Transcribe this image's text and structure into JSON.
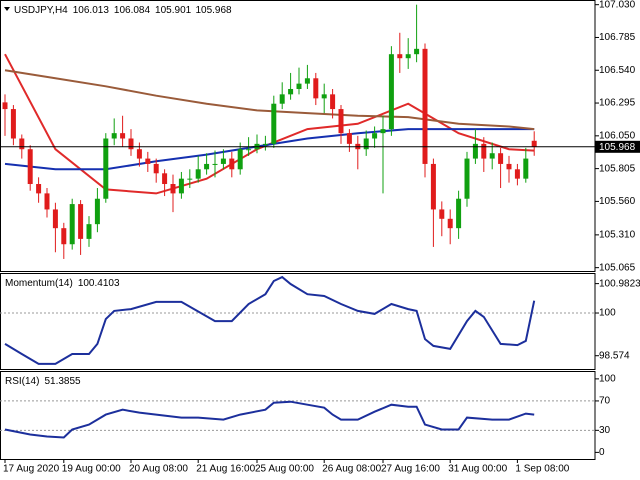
{
  "chart_data": [
    {
      "type": "candlestick",
      "title": "USDJPY,H4",
      "categories": [
        "17 Aug 2020",
        null,
        null,
        null,
        null,
        null,
        null,
        "19 Aug 00:00",
        null,
        null,
        null,
        null,
        null,
        null,
        null,
        "20 Aug 08:00",
        null,
        null,
        null,
        null,
        null,
        null,
        null,
        "21 Aug 16:00",
        null,
        null,
        null,
        null,
        null,
        null,
        "25 Aug 00:00",
        null,
        null,
        null,
        null,
        null,
        null,
        null,
        "26 Aug 08:00",
        null,
        null,
        null,
        null,
        null,
        null,
        "27 Aug 16:00",
        null,
        null,
        null,
        null,
        null,
        null,
        null,
        "31 Aug 00:00",
        null,
        null,
        null,
        null,
        null,
        null,
        null,
        "1 Sep 08:00",
        null,
        null
      ],
      "series": [
        {
          "open": [
            106.3,
            106.25,
            106.03,
            105.95,
            105.69,
            105.62,
            105.5,
            105.36,
            105.24,
            105.54,
            105.28,
            105.39,
            105.58,
            106.03,
            106.07,
            106.03,
            105.95,
            105.88,
            105.84,
            105.77,
            105.69,
            105.62,
            105.73,
            105.73,
            105.8,
            105.84,
            105.84,
            105.88,
            105.8,
            105.95,
            105.95,
            105.99,
            105.99,
            106.29,
            106.36,
            106.4,
            106.44,
            106.48,
            106.33,
            106.36,
            106.25,
            106.07,
            105.99,
            105.95,
            106.03,
            106.07,
            106.1,
            106.66,
            106.63,
            106.66,
            106.7,
            105.84,
            105.5,
            105.43,
            105.36,
            105.58,
            105.88,
            105.99,
            105.88,
            105.92,
            105.84,
            105.8,
            105.73,
            106.013
          ],
          "high": [
            106.36,
            106.28,
            106.06,
            105.98,
            105.74,
            105.66,
            105.55,
            105.4,
            105.58,
            105.57,
            105.45,
            105.66,
            106.07,
            106.18,
            106.2,
            106.1,
            106.0,
            105.93,
            105.88,
            105.8,
            105.76,
            105.78,
            105.8,
            105.9,
            105.92,
            105.94,
            105.95,
            105.93,
            106.0,
            106.04,
            106.06,
            106.05,
            106.35,
            106.45,
            106.52,
            106.56,
            106.58,
            106.52,
            106.44,
            106.4,
            106.28,
            106.1,
            106.05,
            106.09,
            106.12,
            106.2,
            106.72,
            106.82,
            106.78,
            107.03,
            106.74,
            105.88,
            105.56,
            105.5,
            105.64,
            105.93,
            106.1,
            106.04,
            106.0,
            105.96,
            105.9,
            105.84,
            105.96,
            106.084
          ],
          "low": [
            106.05,
            105.98,
            105.88,
            105.64,
            105.55,
            105.44,
            105.18,
            105.13,
            105.2,
            105.16,
            105.22,
            105.33,
            105.55,
            105.98,
            105.97,
            105.9,
            105.82,
            105.78,
            105.7,
            105.6,
            105.48,
            105.58,
            105.66,
            105.7,
            105.76,
            105.74,
            105.8,
            105.74,
            105.76,
            105.9,
            105.92,
            105.94,
            105.96,
            106.25,
            106.32,
            106.36,
            106.4,
            106.28,
            106.22,
            106.18,
            105.99,
            105.93,
            105.8,
            105.9,
            105.96,
            105.62,
            106.05,
            106.52,
            106.55,
            106.6,
            105.74,
            105.22,
            105.3,
            105.24,
            105.28,
            105.52,
            105.84,
            105.78,
            105.8,
            105.66,
            105.7,
            105.68,
            105.7,
            105.901
          ],
          "close": [
            106.25,
            106.03,
            105.95,
            105.69,
            105.62,
            105.5,
            105.36,
            105.24,
            105.54,
            105.28,
            105.39,
            105.58,
            106.03,
            106.07,
            106.03,
            105.95,
            105.88,
            105.84,
            105.77,
            105.69,
            105.62,
            105.73,
            105.73,
            105.8,
            105.84,
            105.84,
            105.88,
            105.8,
            105.95,
            105.95,
            105.99,
            105.99,
            106.29,
            106.36,
            106.4,
            106.44,
            106.48,
            106.33,
            106.36,
            106.25,
            106.07,
            105.99,
            105.95,
            106.03,
            106.07,
            106.1,
            106.66,
            106.63,
            106.66,
            106.7,
            105.84,
            105.5,
            105.43,
            105.36,
            105.58,
            105.88,
            105.99,
            105.88,
            105.92,
            105.84,
            105.8,
            105.73,
            105.88,
            105.968
          ],
          "up_color": "#10a010",
          "down_color": "#e01c1c"
        }
      ],
      "overlays": [
        {
          "color": "#e02a2a",
          "x": [
            0,
            6,
            12,
            18,
            24,
            30,
            36,
            42,
            48,
            54,
            60,
            63
          ],
          "values": [
            106.66,
            105.95,
            105.65,
            105.62,
            105.73,
            105.95,
            106.1,
            106.14,
            106.29,
            106.07,
            105.95,
            105.94
          ]
        },
        {
          "color": "#1530b0",
          "x": [
            0,
            6,
            12,
            18,
            24,
            30,
            36,
            42,
            48,
            54,
            60,
            63
          ],
          "values": [
            105.84,
            105.8,
            105.8,
            105.86,
            105.91,
            105.97,
            106.03,
            106.07,
            106.1,
            106.1,
            106.1,
            106.1
          ]
        },
        {
          "color": "#9a5b3a",
          "x": [
            0,
            6,
            12,
            18,
            24,
            30,
            36,
            42,
            48,
            54,
            60,
            63
          ],
          "values": [
            106.54,
            106.48,
            106.42,
            106.35,
            106.29,
            106.24,
            106.22,
            106.2,
            106.19,
            106.14,
            106.12,
            106.1
          ]
        }
      ],
      "ylim": [
        105.04,
        107.05
      ],
      "yticks": [
        {
          "value": 107.03,
          "label": "107.030"
        },
        106.785,
        {
          "value": 106.54,
          "label": "106.540"
        },
        106.295,
        {
          "value": 106.05,
          "label": "106.050"
        },
        105.805,
        {
          "value": 105.56,
          "label": "105.560"
        },
        {
          "value": 105.31,
          "label": "105.310"
        },
        105.065
      ]
    },
    {
      "type": "line",
      "title": "Momentum(14)",
      "series": [
        {
          "color": "#1c2f9c",
          "x": [
            0,
            2,
            4,
            6,
            8,
            10,
            11,
            12,
            13,
            15,
            18,
            21,
            25,
            27,
            29,
            31,
            32,
            33,
            34,
            36,
            38,
            40,
            42,
            44,
            46,
            48,
            49,
            50,
            51,
            53,
            55,
            56,
            57,
            59,
            61,
            62,
            63
          ],
          "values": [
            98.97,
            98.63,
            98.3,
            98.3,
            98.63,
            98.63,
            98.97,
            99.8,
            100.07,
            100.13,
            100.37,
            100.37,
            99.73,
            99.73,
            100.3,
            100.63,
            101.07,
            101.2,
            100.97,
            100.63,
            100.57,
            100.3,
            100.07,
            99.97,
            100.3,
            100.13,
            100.07,
            99.13,
            98.9,
            98.8,
            99.73,
            100.07,
            99.87,
            98.97,
            98.93,
            99.07,
            100.4103
          ]
        }
      ],
      "levels": [
        100
      ],
      "ylim": [
        98.13,
        101.27
      ],
      "yticks": [
        100.9823,
        100,
        98.574
      ]
    },
    {
      "type": "line",
      "title": "RSI(14)",
      "series": [
        {
          "color": "#1c2f9c",
          "x": [
            0,
            3,
            5,
            7,
            8,
            10,
            12,
            14,
            16,
            18,
            21,
            23,
            26,
            28,
            31,
            32,
            34,
            36,
            38,
            39,
            40,
            42,
            44,
            46,
            48,
            49,
            50,
            52,
            54,
            55,
            58,
            60,
            62,
            63
          ],
          "values": [
            31.1,
            24.3,
            21.6,
            20.3,
            31.1,
            37.8,
            51.4,
            58.1,
            54.1,
            51.4,
            47.3,
            47.3,
            44.6,
            51.4,
            58.1,
            67.6,
            68.9,
            64.9,
            60.8,
            51.4,
            44.6,
            44.6,
            55.4,
            64.9,
            62.2,
            62.2,
            37.8,
            31.1,
            31.1,
            47.3,
            44.6,
            44.6,
            52.7,
            51.3855
          ]
        }
      ],
      "levels": [
        70,
        30
      ],
      "ylim": [
        -9,
        108
      ],
      "yticks": [
        100,
        70,
        30,
        0
      ]
    }
  ]
}
